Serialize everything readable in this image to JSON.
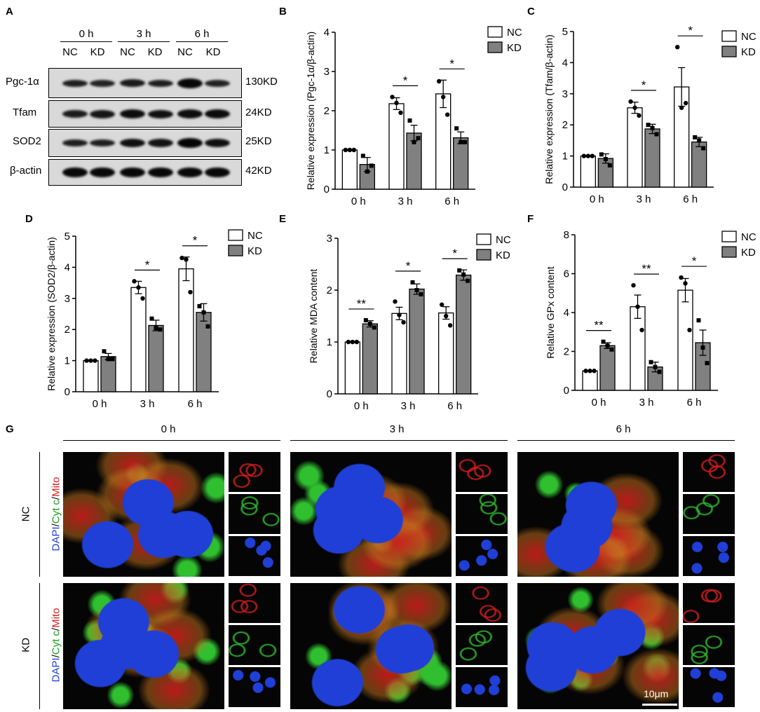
{
  "panel_letters": [
    "A",
    "B",
    "C",
    "D",
    "E",
    "F",
    "G"
  ],
  "western_blot": {
    "time_headers": [
      "0 h",
      "3 h",
      "6 h"
    ],
    "group_headers": [
      "NC",
      "KD",
      "NC",
      "KD",
      "NC",
      "KD"
    ],
    "rows": [
      {
        "label": "Pgc-1α",
        "size": "130KD",
        "intensity": [
          0.55,
          0.45,
          0.62,
          0.55,
          0.95,
          0.5
        ]
      },
      {
        "label": "Tfam",
        "size": "24KD",
        "intensity": [
          0.6,
          0.7,
          0.85,
          0.8,
          0.85,
          0.9
        ]
      },
      {
        "label": "SOD2",
        "size": "25KD",
        "intensity": [
          0.55,
          0.55,
          0.8,
          0.75,
          1.0,
          0.8
        ]
      },
      {
        "label": "β-actin",
        "size": "42KD",
        "intensity": [
          0.95,
          0.95,
          0.95,
          0.95,
          0.95,
          0.95
        ]
      }
    ]
  },
  "chart_data": [
    {
      "panel": "B",
      "type": "bar",
      "ylabel": "Relative expression (Pgc-1α/β-actin)",
      "categories": [
        "0 h",
        "3 h",
        "6 h"
      ],
      "ylim": [
        0,
        4
      ],
      "yticks": [
        "0",
        "1",
        "2",
        "3",
        "4"
      ],
      "legend": [
        "NC",
        "KD"
      ],
      "legend_position": "top-right",
      "series": [
        {
          "name": "NC",
          "values": [
            1.0,
            2.18,
            2.43
          ],
          "sem": [
            0.02,
            0.15,
            0.35
          ],
          "points": [
            [
              1,
              1,
              1
            ],
            [
              2.35,
              2.2,
              1.95
            ],
            [
              2.75,
              2.35,
              1.9
            ]
          ]
        },
        {
          "name": "KD",
          "values": [
            0.63,
            1.43,
            1.31
          ],
          "sem": [
            0.18,
            0.2,
            0.15
          ],
          "points": [
            [
              0.85,
              0.45,
              0.6
            ],
            [
              1.75,
              1.2,
              1.3
            ],
            [
              1.55,
              1.2,
              1.2
            ]
          ]
        }
      ],
      "significance": [
        {
          "category": "3 h",
          "label": "*"
        },
        {
          "category": "6 h",
          "label": "*"
        }
      ]
    },
    {
      "panel": "C",
      "type": "bar",
      "ylabel": "Relative expression (Tfam/β-actin)",
      "categories": [
        "0 h",
        "3 h",
        "6 h"
      ],
      "ylim": [
        0,
        5
      ],
      "yticks": [
        "0",
        "1",
        "2",
        "3",
        "4",
        "5"
      ],
      "legend": [
        "NC",
        "KD"
      ],
      "legend_position": "top-right",
      "series": [
        {
          "name": "NC",
          "values": [
            1.0,
            2.55,
            3.22
          ],
          "sem": [
            0.02,
            0.18,
            0.62
          ],
          "points": [
            [
              1,
              1,
              1
            ],
            [
              2.75,
              2.55,
              2.3
            ],
            [
              4.5,
              2.55,
              2.7
            ]
          ]
        },
        {
          "name": "KD",
          "values": [
            0.92,
            1.87,
            1.45
          ],
          "sem": [
            0.15,
            0.15,
            0.15
          ],
          "points": [
            [
              1.05,
              0.9,
              0.7
            ],
            [
              2.0,
              1.9,
              1.7
            ],
            [
              1.6,
              1.5,
              1.25
            ]
          ]
        }
      ],
      "significance": [
        {
          "category": "3 h",
          "label": "*"
        },
        {
          "category": "6 h",
          "label": "*"
        }
      ]
    },
    {
      "panel": "D",
      "type": "bar",
      "ylabel": "Relative expression (SOD2/β-actin)",
      "categories": [
        "0 h",
        "3 h",
        "6 h"
      ],
      "ylim": [
        0,
        5
      ],
      "yticks": [
        "0",
        "1",
        "2",
        "3",
        "4",
        "5"
      ],
      "legend": [
        "NC",
        "KD"
      ],
      "legend_position": "top-right",
      "series": [
        {
          "name": "NC",
          "values": [
            1.0,
            3.35,
            3.95
          ],
          "sem": [
            0.02,
            0.2,
            0.38
          ],
          "points": [
            [
              1,
              1,
              1
            ],
            [
              3.55,
              3.35,
              3.0
            ],
            [
              4.3,
              4.25,
              3.2
            ]
          ]
        },
        {
          "name": "KD",
          "values": [
            1.13,
            2.13,
            2.55
          ],
          "sem": [
            0.1,
            0.17,
            0.28
          ],
          "points": [
            [
              1.3,
              1.05,
              1.05
            ],
            [
              2.35,
              2.05,
              2.0
            ],
            [
              2.75,
              2.55,
              2.1
            ]
          ]
        }
      ],
      "significance": [
        {
          "category": "3 h",
          "label": "*"
        },
        {
          "category": "6 h",
          "label": "*"
        }
      ]
    },
    {
      "panel": "E",
      "type": "bar",
      "ylabel": "Relative MDA content",
      "categories": [
        "0 h",
        "3 h",
        "6 h"
      ],
      "ylim": [
        0,
        3
      ],
      "yticks": [
        "0",
        "1",
        "2",
        "3"
      ],
      "legend": [
        "NC",
        "KD"
      ],
      "legend_position": "top-right",
      "series": [
        {
          "name": "NC",
          "values": [
            1.0,
            1.55,
            1.56
          ],
          "sem": [
            0.01,
            0.12,
            0.12
          ],
          "points": [
            [
              1,
              1,
              1
            ],
            [
              1.78,
              1.52,
              1.38
            ],
            [
              1.72,
              1.5,
              1.32
            ]
          ]
        },
        {
          "name": "KD",
          "values": [
            1.35,
            2.02,
            2.29
          ],
          "sem": [
            0.06,
            0.1,
            0.1
          ],
          "points": [
            [
              1.42,
              1.35,
              1.28
            ],
            [
              2.15,
              2.0,
              1.92
            ],
            [
              2.38,
              2.3,
              2.18
            ]
          ]
        }
      ],
      "significance": [
        {
          "category": "0 h",
          "label": "**"
        },
        {
          "category": "3 h",
          "label": "*"
        },
        {
          "category": "6 h",
          "label": "*"
        }
      ]
    },
    {
      "panel": "F",
      "type": "bar",
      "ylabel": "Relative GPx content",
      "categories": [
        "0 h",
        "3 h",
        "6 h"
      ],
      "ylim": [
        0,
        8
      ],
      "yticks": [
        "0",
        "2",
        "4",
        "6",
        "8"
      ],
      "legend": [
        "NC",
        "KD"
      ],
      "legend_position": "top-right",
      "series": [
        {
          "name": "NC",
          "values": [
            1.0,
            4.3,
            5.15
          ],
          "sem": [
            0.02,
            0.6,
            0.6
          ],
          "points": [
            [
              1,
              1,
              1
            ],
            [
              5.4,
              4.3,
              3.1
            ],
            [
              5.8,
              5.5,
              3.1
            ]
          ]
        },
        {
          "name": "KD",
          "values": [
            2.3,
            1.2,
            2.45
          ],
          "sem": [
            0.15,
            0.25,
            0.65
          ],
          "points": [
            [
              2.5,
              2.3,
              2.1
            ],
            [
              1.45,
              1.2,
              0.95
            ],
            [
              3.6,
              2.2,
              1.4
            ]
          ]
        }
      ],
      "significance": [
        {
          "category": "0 h",
          "label": "**"
        },
        {
          "category": "3 h",
          "label": "**"
        },
        {
          "category": "6 h",
          "label": "*"
        }
      ]
    }
  ],
  "colors": {
    "nc_fill": "#ffffff",
    "kd_fill": "#808080",
    "dapi": "#1f3fd6",
    "cytc": "#2fbf2f",
    "mito": "#d81e1e"
  },
  "micrographs": {
    "time_headers": [
      "0 h",
      "3 h",
      "6 h"
    ],
    "row_labels": [
      "NC",
      "KD"
    ],
    "stain_label": {
      "dapi": "DAPI",
      "sep1": "/",
      "cytc": "Cyt c",
      "sep2": "/",
      "mito": "Mito"
    },
    "scale_bar": "10μm"
  }
}
